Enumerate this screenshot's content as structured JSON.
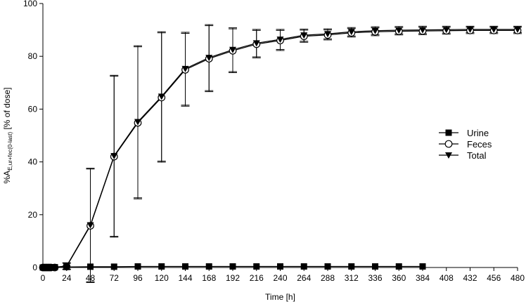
{
  "chart_data": {
    "type": "line",
    "xlabel": "Time [h]",
    "ylabel_prefix": "%A",
    "ylabel_sub": "E,ur+fec(0-last)",
    "ylabel_suffix": " [% of dose]",
    "xlim": [
      0,
      480
    ],
    "ylim": [
      0,
      100
    ],
    "x_ticks": [
      0,
      24,
      48,
      72,
      96,
      120,
      144,
      168,
      192,
      216,
      240,
      264,
      288,
      312,
      336,
      360,
      384,
      408,
      432,
      456,
      480
    ],
    "y_ticks": [
      0,
      20,
      40,
      60,
      80,
      100
    ],
    "grid": false,
    "legend_position": "right",
    "series": [
      {
        "name": "Urine",
        "marker": "square",
        "color": "#000000",
        "x": [
          0,
          2,
          4,
          6,
          8,
          12,
          24,
          48,
          72,
          96,
          120,
          144,
          168,
          192,
          216,
          240,
          264,
          288,
          312,
          336,
          360,
          384
        ],
        "y": [
          0,
          0,
          0,
          0,
          0.1,
          0.1,
          0.2,
          0.3,
          0.3,
          0.4,
          0.4,
          0.4,
          0.4,
          0.4,
          0.4,
          0.4,
          0.4,
          0.4,
          0.4,
          0.4,
          0.4,
          0.4
        ],
        "err": [
          0,
          0,
          0,
          0,
          0,
          0,
          0.1,
          0.1,
          0.1,
          0.1,
          0.1,
          0.1,
          0.1,
          0.1,
          0.1,
          0.1,
          0.1,
          0.1,
          0.1,
          0.1,
          0.1,
          0.1
        ]
      },
      {
        "name": "Feces",
        "marker": "circle",
        "color": "#000000",
        "x": [
          0,
          2,
          4,
          6,
          8,
          12,
          24,
          48,
          72,
          96,
          120,
          144,
          168,
          192,
          216,
          240,
          264,
          288,
          312,
          336,
          360,
          384,
          408,
          432,
          456,
          480
        ],
        "y": [
          0,
          0,
          0,
          0,
          0,
          0,
          0.4,
          15.8,
          42.0,
          54.8,
          64.4,
          74.9,
          79.1,
          82.1,
          84.6,
          86.0,
          87.6,
          88.1,
          88.9,
          89.3,
          89.5,
          89.6,
          89.7,
          89.8,
          89.8,
          89.8
        ],
        "err": [
          0,
          0,
          0,
          0,
          0,
          0,
          1.2,
          21.5,
          30.5,
          28.8,
          24.5,
          13.8,
          12.5,
          8.3,
          5.2,
          3.8,
          2.3,
          1.9,
          1.6,
          1.5,
          1.4,
          1.4,
          1.3,
          1.2,
          1.2,
          1.2
        ]
      },
      {
        "name": "Total",
        "marker": "triangle-down",
        "color": "#000000",
        "x": [
          0,
          2,
          4,
          6,
          8,
          12,
          24,
          48,
          72,
          96,
          120,
          144,
          168,
          192,
          216,
          240,
          264,
          288,
          312,
          336,
          360,
          384,
          408,
          432,
          456,
          480
        ],
        "y": [
          0,
          0,
          0,
          0,
          0.1,
          0.1,
          0.6,
          16.1,
          42.3,
          55.2,
          64.8,
          75.3,
          79.5,
          82.5,
          85.0,
          86.4,
          88.0,
          88.5,
          89.3,
          89.7,
          89.9,
          90.0,
          90.1,
          90.2,
          90.2,
          90.2
        ],
        "err": [
          0,
          0,
          0,
          0,
          0,
          0,
          1.2,
          21.5,
          30.5,
          28.8,
          24.5,
          13.8,
          12.5,
          8.3,
          5.2,
          3.8,
          2.3,
          1.9,
          1.6,
          1.5,
          1.4,
          1.4,
          1.3,
          1.2,
          1.2,
          1.2
        ]
      }
    ]
  }
}
